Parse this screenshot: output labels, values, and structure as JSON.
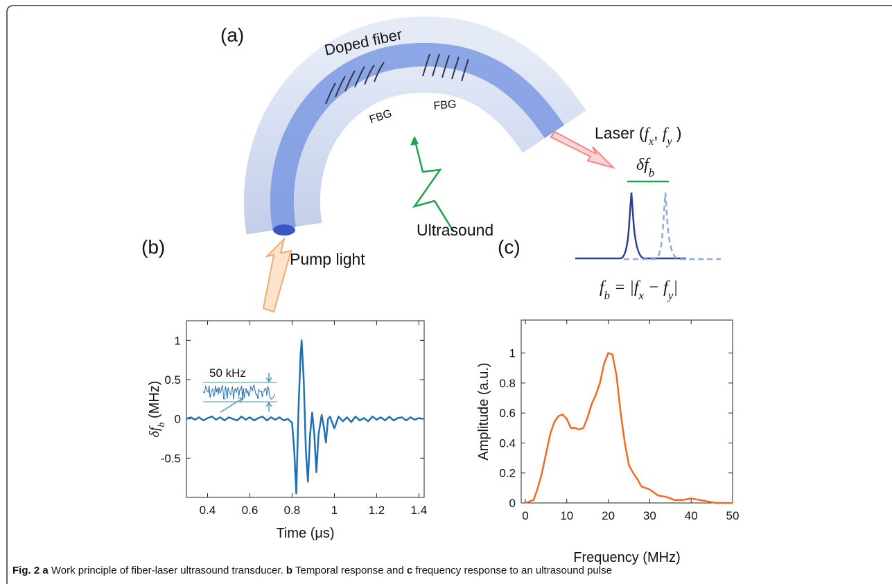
{
  "figure": {
    "panel_a": "(a)",
    "panel_b": "(b)",
    "panel_c": "(c)",
    "doped_fiber": "Doped fiber",
    "fbg_1": "FBG",
    "fbg_2": "FBG",
    "laser": [
      "Laser (",
      "f",
      "x",
      ", ",
      "f",
      "y",
      " )"
    ],
    "delta_fb": [
      "δf",
      "b"
    ],
    "ultrasound": "Ultrasound",
    "pump_light": "Pump light",
    "formula": [
      "f",
      "b",
      " = |f",
      "x",
      " − f",
      "y",
      "|"
    ],
    "caption": [
      "Fig. 2",
      " a",
      " Work principle of fiber-laser ultrasound transducer.",
      " b",
      " Temporal response and ",
      "c",
      " frequency response to an ultrasound pulse"
    ]
  },
  "chart_data": [
    {
      "type": "line",
      "x_label": "Time (μs)",
      "y_label": [
        "δf",
        "b",
        " (MHz)"
      ],
      "annotation": "50 kHz",
      "color": "#1f6fb4",
      "x": [
        0.3,
        0.32,
        0.34,
        0.36,
        0.38,
        0.4,
        0.42,
        0.44,
        0.46,
        0.48,
        0.5,
        0.52,
        0.54,
        0.56,
        0.58,
        0.6,
        0.62,
        0.64,
        0.66,
        0.68,
        0.7,
        0.72,
        0.74,
        0.76,
        0.78,
        0.8,
        0.81,
        0.82,
        0.83,
        0.84,
        0.845,
        0.855,
        0.865,
        0.875,
        0.885,
        0.895,
        0.905,
        0.915,
        0.925,
        0.94,
        0.95,
        0.96,
        0.97,
        0.98,
        0.99,
        1.0,
        1.02,
        1.04,
        1.06,
        1.08,
        1.1,
        1.12,
        1.14,
        1.16,
        1.18,
        1.2,
        1.22,
        1.24,
        1.26,
        1.28,
        1.3,
        1.32,
        1.34,
        1.36,
        1.38,
        1.4,
        1.42
      ],
      "values": [
        0,
        0.02,
        -0.01,
        0.02,
        -0.02,
        0.01,
        0.03,
        -0.01,
        0.02,
        -0.02,
        0.02,
        0,
        -0.02,
        0.03,
        -0.01,
        0.02,
        -0.02,
        0.01,
        0.03,
        -0.02,
        0.02,
        -0.01,
        0.02,
        -0.02,
        0,
        -0.05,
        -0.4,
        -0.95,
        0.1,
        0.8,
        1.0,
        0.5,
        -0.4,
        -0.8,
        -0.2,
        0.08,
        -0.2,
        -0.68,
        -0.2,
        0.05,
        -0.1,
        -0.3,
        0,
        0.03,
        -0.05,
        -0.12,
        0.03,
        -0.03,
        0.02,
        -0.04,
        0.03,
        -0.02,
        0.01,
        -0.03,
        0.03,
        -0.01,
        0.02,
        -0.02,
        0.03,
        -0.02,
        0.01,
        0.02,
        -0.02,
        0.02,
        -0.01,
        0.01,
        0
      ],
      "xlim": [
        0.3,
        1.425
      ],
      "ylim": [
        -1,
        1.25
      ],
      "xticks": [
        0.4,
        0.6,
        0.8,
        1,
        1.2,
        1.4
      ],
      "yticks": [
        -0.5,
        0,
        0.5,
        1
      ]
    },
    {
      "type": "line",
      "x_label": "Frequency (MHz)",
      "y_label": "Amplitude (a.u.)",
      "color": "#f26a21",
      "x": [
        0,
        1,
        2,
        3,
        4,
        5,
        6,
        7,
        8,
        9,
        10,
        11,
        12,
        13,
        14,
        15,
        16,
        17,
        18,
        19,
        20,
        21,
        22,
        23,
        24,
        25,
        26,
        27,
        28,
        30,
        32,
        34,
        36,
        38,
        40,
        42,
        44,
        46,
        48,
        50
      ],
      "values": [
        0,
        0.01,
        0.02,
        0.1,
        0.2,
        0.33,
        0.46,
        0.54,
        0.58,
        0.59,
        0.56,
        0.5,
        0.5,
        0.49,
        0.5,
        0.57,
        0.66,
        0.72,
        0.8,
        0.93,
        1.0,
        0.99,
        0.85,
        0.6,
        0.4,
        0.25,
        0.2,
        0.16,
        0.11,
        0.09,
        0.05,
        0.04,
        0.02,
        0.02,
        0.03,
        0.02,
        0.01,
        0,
        0,
        0
      ],
      "xlim": [
        -1,
        50
      ],
      "ylim": [
        0,
        1.22
      ],
      "xticks": [
        0,
        10,
        20,
        30,
        40,
        50
      ],
      "yticks": [
        0,
        0.2,
        0.4,
        0.6,
        0.8,
        1
      ]
    }
  ]
}
